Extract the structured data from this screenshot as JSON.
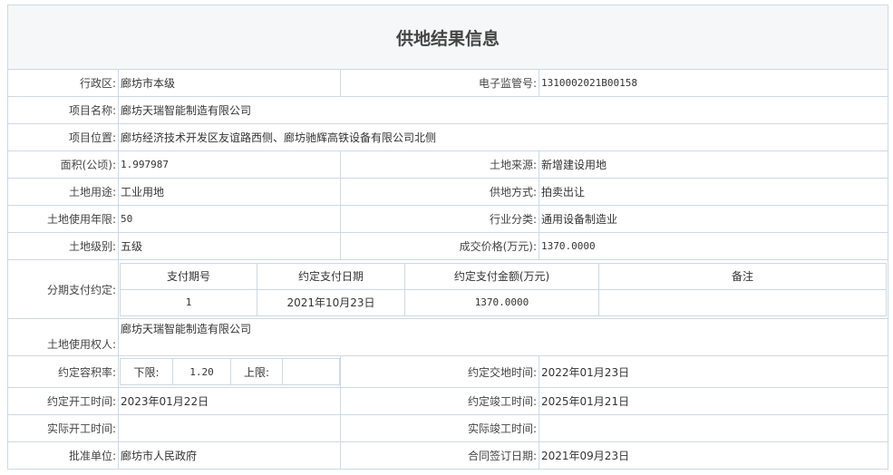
{
  "title": "供地结果信息",
  "rows": {
    "district": {
      "label": "行政区:",
      "value": "廊坊市本级"
    },
    "supervision_no": {
      "label": "电子监管号:",
      "value": "1310002021B00158"
    },
    "project_name": {
      "label": "项目名称:",
      "value": "廊坊天瑞智能制造有限公司"
    },
    "project_location": {
      "label": "项目位置:",
      "value": "廊坊经济技术开发区友谊路西侧、廊坊驰辉高铁设备有限公司北侧"
    },
    "area": {
      "label": "面积(公顷):",
      "value": "1.997987"
    },
    "land_source": {
      "label": "土地来源:",
      "value": "新增建设用地"
    },
    "land_use": {
      "label": "土地用途:",
      "value": "工业用地"
    },
    "supply_method": {
      "label": "供地方式:",
      "value": "拍卖出让"
    },
    "use_years": {
      "label": "土地使用年限:",
      "value": "50"
    },
    "industry": {
      "label": "行业分类:",
      "value": "通用设备制造业"
    },
    "land_grade": {
      "label": "土地级别:",
      "value": "五级"
    },
    "price": {
      "label": "成交价格(万元):",
      "value": "1370.0000"
    },
    "installments": {
      "label": "分期支付约定:",
      "headers": [
        "支付期号",
        "约定支付日期",
        "约定支付金额(万元)",
        "备注"
      ],
      "rows": [
        [
          "1",
          "2021年10月23日",
          "1370.0000",
          ""
        ]
      ]
    },
    "land_holder": {
      "label": "土地使用权人:",
      "value": "廊坊天瑞智能制造有限公司"
    },
    "plot_ratio": {
      "label": "约定容积率:",
      "lower_label": "下限:",
      "lower_value": "1.20",
      "upper_label": "上限:",
      "upper_value": ""
    },
    "handover_time": {
      "label": "约定交地时间:",
      "value": "2022年01月23日"
    },
    "start_time": {
      "label": "约定开工时间:",
      "value": "2023年01月22日"
    },
    "completion_time": {
      "label": "约定竣工时间:",
      "value": "2025年01月21日"
    },
    "actual_start": {
      "label": "实际开工时间:",
      "value": ""
    },
    "actual_completion": {
      "label": "实际竣工时间:",
      "value": ""
    },
    "approval_unit": {
      "label": "批准单位:",
      "value": "廊坊市人民政府"
    },
    "contract_date": {
      "label": "合同签订日期:",
      "value": "2021年09月23日"
    }
  }
}
